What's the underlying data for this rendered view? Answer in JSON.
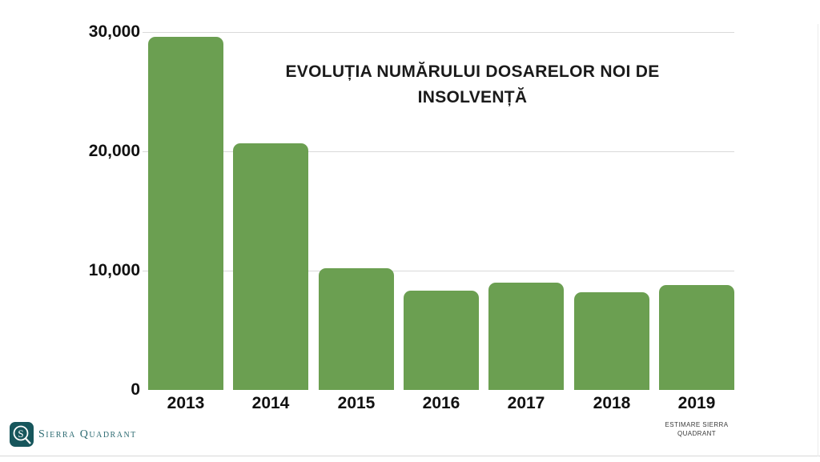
{
  "chart_data": {
    "type": "bar",
    "title": "EVOLUȚIA NUMĂRULUI DOSARELOR NOI DE INSOLVENȚĂ",
    "categories": [
      "2013",
      "2014",
      "2015",
      "2016",
      "2017",
      "2018",
      "2019"
    ],
    "values": [
      29600,
      20700,
      10200,
      8300,
      9000,
      8200,
      8800
    ],
    "xlabel": "",
    "ylabel": "",
    "ylim": [
      0,
      30000
    ],
    "yticks": [
      {
        "value": 30000,
        "label": "30,000"
      },
      {
        "value": 20000,
        "label": "20,000"
      },
      {
        "value": 10000,
        "label": "10,000"
      },
      {
        "value": 0,
        "label": "0"
      }
    ],
    "legend": "none",
    "grid": "horizontal",
    "bar_color": "#6b9f51"
  },
  "footer": {
    "note": "ESTIMARE SIERRA QUADRANT",
    "logo_monogram": "S",
    "logo_text": "Sierra Quadrant"
  },
  "colors": {
    "bar_green": "#6b9f51",
    "grid_gray": "#d9d9d9",
    "text_black": "#111111",
    "logo_teal": "#17565c",
    "logo_text_teal": "#2d6b72",
    "note_gray": "#3a3a3a"
  }
}
